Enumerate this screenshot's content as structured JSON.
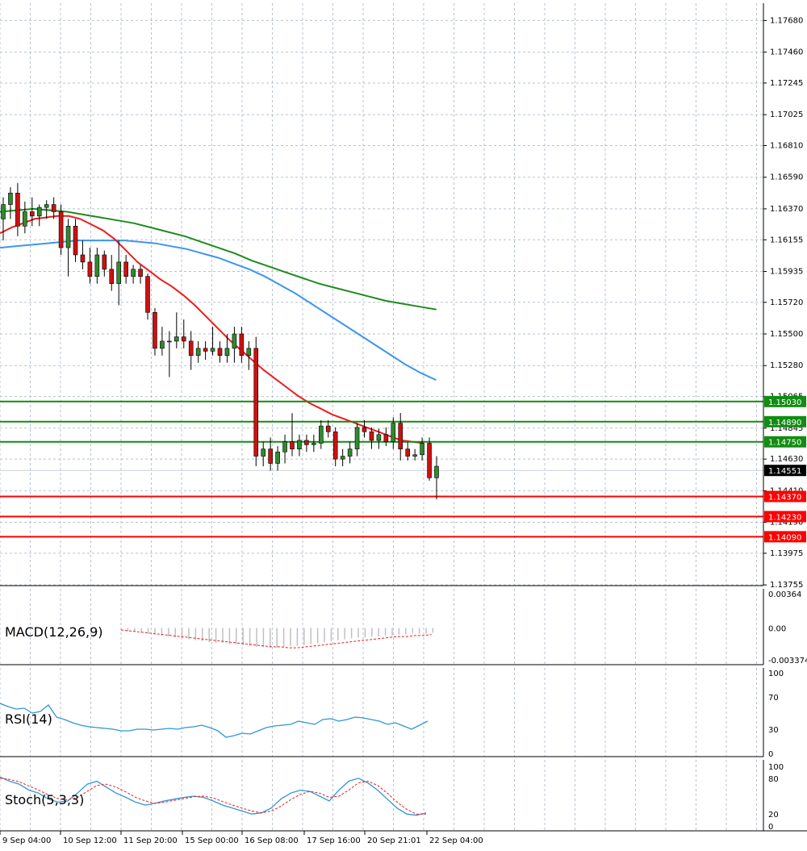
{
  "colors": {
    "background": "#ffffff",
    "grid": "#b8c2d0",
    "bull": "#2e8b2e",
    "bear": "#cc1111",
    "ma_fast": "#ee1c1c",
    "ma_mid": "#3c96ee",
    "ma_slow": "#1f8a1f",
    "support": "#ff0000",
    "resistance": "#128c12",
    "rsi": "#2f96d8",
    "stoch_main": "#2f96d8",
    "stoch_signal": "#ee1c1c",
    "macd_hist": "#c0c0c0",
    "macd_signal": "#ee1c1c"
  },
  "chart_data": [
    {
      "type": "candlestick",
      "ylim": [
        1.1375,
        1.178
      ],
      "price_ticks": [
        "1.17680",
        "1.17460",
        "1.17245",
        "1.17025",
        "1.16810",
        "1.16590",
        "1.16370",
        "1.16155",
        "1.15935",
        "1.15720",
        "1.15500",
        "1.15280",
        "1.15065",
        "1.14845",
        "1.14630",
        "1.14410",
        "1.14190",
        "1.13975",
        "1.13755"
      ],
      "x_labels": [
        "9 Sep 04:00",
        "10 Sep 12:00",
        "11 Sep 20:00",
        "15 Sep 00:00",
        "16 Sep 08:00",
        "17 Sep 16:00",
        "20 Sep 21:01",
        "22 Sep 04:00"
      ],
      "current_price": "1.14551",
      "support_levels": [
        "1.14370",
        "1.14230",
        "1.14090"
      ],
      "resistance_levels": [
        "1.15030",
        "1.14890",
        "1.14750"
      ],
      "grid": true,
      "candles": [
        [
          1.163,
          1.1645,
          1.1615,
          1.164
        ],
        [
          1.164,
          1.1652,
          1.163,
          1.1648
        ],
        [
          1.1648,
          1.1655,
          1.1618,
          1.1625
        ],
        [
          1.1625,
          1.1642,
          1.162,
          1.1635
        ],
        [
          1.1635,
          1.1645,
          1.1625,
          1.1632
        ],
        [
          1.1632,
          1.164,
          1.1625,
          1.1638
        ],
        [
          1.1638,
          1.1643,
          1.163,
          1.164
        ],
        [
          1.164,
          1.1645,
          1.163,
          1.1635
        ],
        [
          1.1635,
          1.164,
          1.1605,
          1.161
        ],
        [
          1.161,
          1.163,
          1.159,
          1.1625
        ],
        [
          1.1625,
          1.163,
          1.16,
          1.1605
        ],
        [
          1.1605,
          1.1615,
          1.1595,
          1.16
        ],
        [
          1.16,
          1.161,
          1.1585,
          1.159
        ],
        [
          1.159,
          1.161,
          1.1585,
          1.1605
        ],
        [
          1.1605,
          1.1608,
          1.159,
          1.1595
        ],
        [
          1.1595,
          1.1605,
          1.158,
          1.1585
        ],
        [
          1.1585,
          1.1615,
          1.157,
          1.16
        ],
        [
          1.16,
          1.1605,
          1.1585,
          1.159
        ],
        [
          1.159,
          1.1598,
          1.1585,
          1.1595
        ],
        [
          1.1595,
          1.1598,
          1.1585,
          1.159
        ],
        [
          1.159,
          1.1592,
          1.156,
          1.1565
        ],
        [
          1.1565,
          1.1568,
          1.1535,
          1.154
        ],
        [
          1.154,
          1.1555,
          1.1535,
          1.1545
        ],
        [
          1.1545,
          1.1552,
          1.152,
          1.1545
        ],
        [
          1.1545,
          1.1565,
          1.154,
          1.1548
        ],
        [
          1.1548,
          1.156,
          1.154,
          1.1545
        ],
        [
          1.1545,
          1.1552,
          1.1525,
          1.1535
        ],
        [
          1.1535,
          1.1545,
          1.153,
          1.154
        ],
        [
          1.154,
          1.1545,
          1.1532,
          1.1538
        ],
        [
          1.1538,
          1.1555,
          1.1535,
          1.154
        ],
        [
          1.154,
          1.1545,
          1.153,
          1.1535
        ],
        [
          1.1535,
          1.155,
          1.153,
          1.154
        ],
        [
          1.154,
          1.1555,
          1.153,
          1.155
        ],
        [
          1.155,
          1.1555,
          1.153,
          1.1535
        ],
        [
          1.1535,
          1.1545,
          1.1525,
          1.154
        ],
        [
          1.154,
          1.1548,
          1.1458,
          1.1465
        ],
        [
          1.1465,
          1.1475,
          1.1458,
          1.147
        ],
        [
          1.147,
          1.1478,
          1.1455,
          1.146
        ],
        [
          1.146,
          1.1472,
          1.1455,
          1.1468
        ],
        [
          1.1468,
          1.148,
          1.146,
          1.1475
        ],
        [
          1.1475,
          1.1495,
          1.1465,
          1.147
        ],
        [
          1.147,
          1.148,
          1.1465,
          1.1476
        ],
        [
          1.1476,
          1.148,
          1.1468,
          1.1473
        ],
        [
          1.1473,
          1.148,
          1.1468,
          1.1474
        ],
        [
          1.1474,
          1.149,
          1.147,
          1.1486
        ],
        [
          1.1486,
          1.149,
          1.1478,
          1.1482
        ],
        [
          1.1482,
          1.1485,
          1.1458,
          1.1463
        ],
        [
          1.1463,
          1.147,
          1.1458,
          1.1465
        ],
        [
          1.1465,
          1.1475,
          1.146,
          1.147
        ],
        [
          1.147,
          1.1488,
          1.1465,
          1.1485
        ],
        [
          1.1485,
          1.149,
          1.1478,
          1.1482
        ],
        [
          1.1482,
          1.1485,
          1.147,
          1.1476
        ],
        [
          1.1476,
          1.1484,
          1.147,
          1.148
        ],
        [
          1.148,
          1.1485,
          1.1472,
          1.1475
        ],
        [
          1.1475,
          1.1492,
          1.147,
          1.1488
        ],
        [
          1.1488,
          1.1495,
          1.1462,
          1.147
        ],
        [
          1.147,
          1.1475,
          1.1462,
          1.1465
        ],
        [
          1.1465,
          1.147,
          1.1462,
          1.1466
        ],
        [
          1.1466,
          1.1478,
          1.1462,
          1.1474
        ],
        [
          1.1474,
          1.1478,
          1.1448,
          1.145
        ],
        [
          1.145,
          1.1465,
          1.1435,
          1.1458
        ]
      ],
      "ma_fast": [
        1.162,
        1.1624,
        1.1627,
        1.163,
        1.1631,
        1.1632,
        1.1632,
        1.163,
        1.1626,
        1.1622,
        1.1616,
        1.1608,
        1.16,
        1.1594,
        1.1588,
        1.1583,
        1.1577,
        1.157,
        1.1562,
        1.1554,
        1.1546,
        1.1539,
        1.1532,
        1.1525,
        1.1519,
        1.1513,
        1.1507,
        1.1502,
        1.1498,
        1.1494,
        1.1491,
        1.1488,
        1.1485,
        1.1482,
        1.1479,
        1.1476,
        1.1475,
        1.1474
      ],
      "ma_mid": [
        1.161,
        1.1611,
        1.1612,
        1.1613,
        1.1614,
        1.1615,
        1.1615,
        1.1615,
        1.1615,
        1.1614,
        1.1613,
        1.1611,
        1.1609,
        1.1606,
        1.1603,
        1.1599,
        1.1595,
        1.159,
        1.1584,
        1.1578,
        1.1571,
        1.1564,
        1.1557,
        1.155,
        1.1543,
        1.1536,
        1.1529,
        1.1523,
        1.1518
      ],
      "ma_slow": [
        1.1635,
        1.1636,
        1.1637,
        1.1636,
        1.1635,
        1.1633,
        1.1631,
        1.1629,
        1.1627,
        1.1624,
        1.1621,
        1.1618,
        1.1614,
        1.161,
        1.1606,
        1.1601,
        1.1597,
        1.1593,
        1.1589,
        1.1585,
        1.1582,
        1.1579,
        1.1576,
        1.1573,
        1.1571,
        1.1569,
        1.1567
      ],
      "rsi": [
        62,
        58,
        55,
        56,
        50,
        52,
        60,
        45,
        42,
        38,
        35,
        33,
        32,
        31,
        30,
        28,
        28,
        30,
        30,
        29,
        30,
        31,
        30,
        32,
        33,
        35,
        32,
        28,
        20,
        22,
        25,
        24,
        28,
        32,
        34,
        35,
        36,
        40,
        38,
        36,
        42,
        43,
        40,
        42,
        45,
        44,
        42,
        40,
        36,
        38,
        34,
        30,
        35,
        40
      ],
      "stoch_main": [
        82,
        75,
        70,
        60,
        55,
        45,
        40,
        42,
        55,
        70,
        75,
        65,
        55,
        48,
        40,
        35,
        38,
        42,
        45,
        48,
        50,
        48,
        42,
        35,
        30,
        25,
        20,
        22,
        30,
        45,
        55,
        60,
        58,
        50,
        42,
        60,
        75,
        80,
        72,
        60,
        45,
        30,
        20,
        18,
        22
      ],
      "stoch_signal": [
        80,
        78,
        74,
        67,
        60,
        52,
        46,
        44,
        48,
        58,
        68,
        70,
        65,
        57,
        48,
        42,
        38,
        40,
        43,
        46,
        49,
        50,
        47,
        41,
        35,
        30,
        25,
        22,
        25,
        33,
        44,
        53,
        58,
        55,
        48,
        50,
        60,
        72,
        75,
        68,
        55,
        40,
        28,
        20,
        20
      ],
      "macd_hist": [
        -0.0002,
        -0.0003,
        -0.0004,
        -0.0005,
        -0.0006,
        -0.0007,
        -0.0008,
        -0.0009,
        -0.001,
        -0.0011,
        -0.0012,
        -0.0013,
        -0.0014,
        -0.0015,
        -0.0016,
        -0.0016,
        -0.0017,
        -0.0017,
        -0.0018,
        -0.0019,
        -0.002,
        -0.002,
        -0.0021,
        -0.0021,
        -0.002,
        -0.0019,
        -0.0019,
        -0.0018,
        -0.0017,
        -0.0016,
        -0.0015,
        -0.0014,
        -0.0013,
        -0.0012,
        -0.0011,
        -0.001,
        -0.001,
        -0.0009,
        -0.0009,
        -0.0008,
        -0.0008,
        -0.0007,
        -0.0007,
        -0.0006,
        -0.0006,
        -0.0006,
        -0.0005
      ],
      "macd_signal": [
        -0.0002,
        -0.0003,
        -0.0004,
        -0.0005,
        -0.0006,
        -0.0007,
        -0.0008,
        -0.0009,
        -0.001,
        -0.0011,
        -0.0012,
        -0.0013,
        -0.0014,
        -0.0015,
        -0.0016,
        -0.0017,
        -0.0018,
        -0.0019,
        -0.002,
        -0.002,
        -0.0021,
        -0.0021,
        -0.002,
        -0.0019,
        -0.0018,
        -0.0017,
        -0.0016,
        -0.0015,
        -0.0014,
        -0.0013,
        -0.0012,
        -0.0011,
        -0.001,
        -0.0009,
        -0.0009,
        -0.0008,
        -0.0008,
        -0.0007
      ],
      "macd": {
        "label": "MACD(12,26,9)",
        "ticks": [
          "0.00364",
          "0.00",
          "-0.003374"
        ]
      },
      "rsi_panel": {
        "label": "RSI(14)",
        "ticks": [
          "100",
          "70",
          "30",
          "0"
        ]
      },
      "stoch_panel": {
        "label": "Stoch(5,3,3)",
        "ticks": [
          "100",
          "80",
          "20",
          "0"
        ]
      }
    }
  ]
}
